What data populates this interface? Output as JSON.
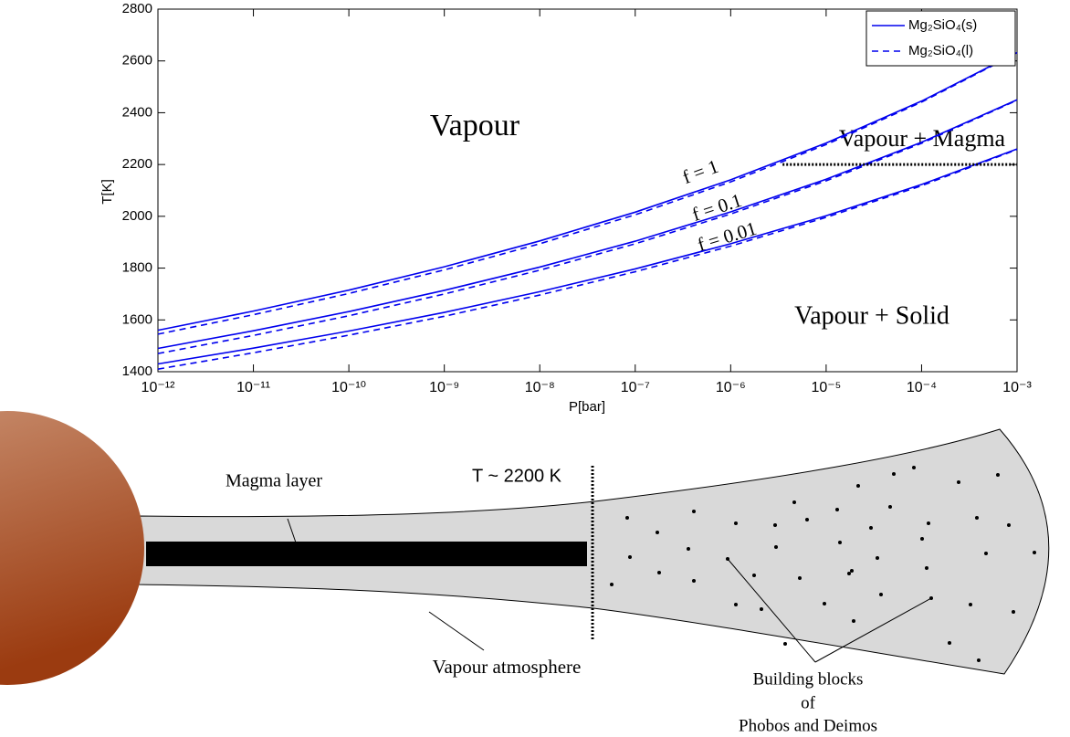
{
  "chart_data": {
    "type": "line",
    "xlabel": "P[bar]",
    "ylabel": "T[K]",
    "xscale": "log",
    "x": [
      1e-12,
      1e-11,
      1e-10,
      1e-09,
      1e-08,
      1e-07,
      1e-06,
      1e-05,
      0.0001,
      0.001
    ],
    "xlim": [
      1e-12,
      0.001
    ],
    "xticks": [
      {
        "value": 1e-12,
        "label": "10⁻¹²"
      },
      {
        "value": 1e-11,
        "label": "10⁻¹¹"
      },
      {
        "value": 1e-10,
        "label": "10⁻¹⁰"
      },
      {
        "value": 1e-09,
        "label": "10⁻⁹"
      },
      {
        "value": 1e-08,
        "label": "10⁻⁸"
      },
      {
        "value": 1e-07,
        "label": "10⁻⁷"
      },
      {
        "value": 1e-06,
        "label": "10⁻⁶"
      },
      {
        "value": 1e-05,
        "label": "10⁻⁵"
      },
      {
        "value": 0.0001,
        "label": "10⁻⁴"
      },
      {
        "value": 0.001,
        "label": "10⁻³"
      }
    ],
    "ylim": [
      1400,
      2800
    ],
    "yticks": [
      1400,
      1600,
      1800,
      2000,
      2200,
      2400,
      2600,
      2800
    ],
    "grid": false,
    "legend": "upper right",
    "curve_labels": [
      "f = 1",
      "f = 0.1",
      "f = 0.01"
    ],
    "series": [
      {
        "name": "Mg₂SiO₄(s)",
        "color": "#0000ee",
        "dashed": false,
        "curves": [
          [
            1560,
            1634,
            1715,
            1805,
            1905,
            2016,
            2141,
            2283,
            2445,
            2632
          ],
          [
            1490,
            1558,
            1632,
            1714,
            1804,
            1904,
            2017,
            2143,
            2286,
            2450
          ],
          [
            1430,
            1491,
            1557,
            1629,
            1709,
            1797,
            1894,
            2002,
            2123,
            2260
          ]
        ]
      },
      {
        "name": "Mg₂SiO₄(l)",
        "color": "#0000ee",
        "dashed": true,
        "curves": [
          [
            1545,
            1620,
            1702,
            1793,
            1894,
            2006,
            2133,
            2277,
            2441,
            2630
          ],
          [
            1470,
            1540,
            1616,
            1700,
            1792,
            1894,
            2009,
            2137,
            2282,
            2448
          ],
          [
            1410,
            1473,
            1541,
            1614,
            1696,
            1786,
            1885,
            1996,
            2118,
            2258
          ]
        ]
      }
    ],
    "threshold": {
      "y": 2200,
      "x": [
        3.5e-06,
        0.001
      ]
    },
    "annotations": {
      "vapour": "Vapour",
      "vapour_magma": "Vapour + Magma",
      "vapour_solid": "Vapour + Solid"
    }
  },
  "diagram": {
    "magma_layer": "Magma layer",
    "temperature": "T ~ 2200 K",
    "atmosphere": "Vapour atmosphere",
    "blocks": [
      "Building blocks",
      "of",
      "Phobos and Deimos"
    ]
  }
}
